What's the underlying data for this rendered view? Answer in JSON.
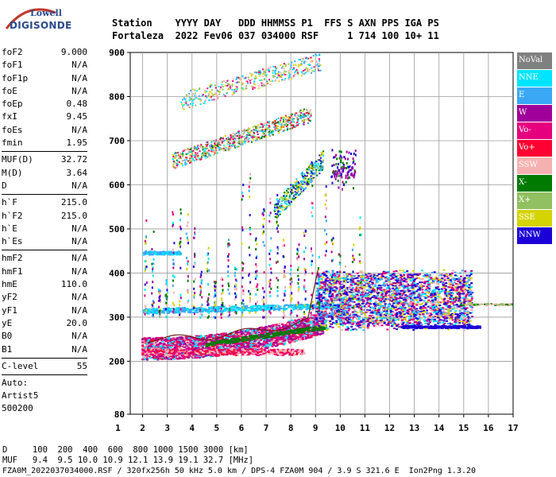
{
  "logo": {
    "brand": "Lowell",
    "product": "DIGISONDE"
  },
  "header": {
    "line1": "Station    YYYY DAY   DDD HHMMSS P1  FFS S AXN PPS IGA PS",
    "line2": "Fortaleza  2022 Fev06 037 034000 RSF     1 714 100 10+ 11"
  },
  "params": {
    "group1": [
      {
        "k": "foF2",
        "v": "9.000"
      },
      {
        "k": "foF1",
        "v": "N/A"
      },
      {
        "k": "foF1p",
        "v": "N/A"
      },
      {
        "k": "foE",
        "v": "N/A"
      },
      {
        "k": "foEp",
        "v": "0.48"
      },
      {
        "k": "fxI",
        "v": "9.45"
      },
      {
        "k": "foEs",
        "v": "N/A"
      },
      {
        "k": "fmin",
        "v": "1.95"
      }
    ],
    "group2": [
      {
        "k": "MUF(D)",
        "v": "32.72"
      },
      {
        "k": "M(D)",
        "v": "3.64"
      },
      {
        "k": "D",
        "v": "N/A"
      }
    ],
    "group3": [
      {
        "k": "h`F",
        "v": "215.0"
      },
      {
        "k": "h`F2",
        "v": "215.0"
      },
      {
        "k": "h`E",
        "v": "N/A"
      },
      {
        "k": "h`Es",
        "v": "N/A"
      }
    ],
    "group4": [
      {
        "k": "hmF2",
        "v": "N/A"
      },
      {
        "k": "hmF1",
        "v": "N/A"
      },
      {
        "k": "hmE",
        "v": "110.0"
      },
      {
        "k": "yF2",
        "v": "N/A"
      },
      {
        "k": "yF1",
        "v": "N/A"
      },
      {
        "k": "yE",
        "v": "20.0"
      },
      {
        "k": "B0",
        "v": "N/A"
      },
      {
        "k": "B1",
        "v": "N/A"
      }
    ],
    "group5": [
      {
        "k": "C-level",
        "v": "55"
      }
    ],
    "auto": {
      "label": "Auto:",
      "program": "Artist5",
      "version": "500200"
    }
  },
  "legend": [
    {
      "label": "NoVal",
      "color": "#808080"
    },
    {
      "label": "NNE",
      "color": "#00e5ff"
    },
    {
      "label": "E",
      "color": "#3aa8f5"
    },
    {
      "label": "W",
      "color": "#a0009a"
    },
    {
      "label": "Vo-",
      "color": "#e6007e"
    },
    {
      "label": "Vo+",
      "color": "#ff0033"
    },
    {
      "label": "SSW",
      "color": "#f5b0b0"
    },
    {
      "label": "X-",
      "color": "#007a00"
    },
    {
      "label": "X+",
      "color": "#90c060"
    },
    {
      "label": "SSE",
      "color": "#d4d400"
    },
    {
      "label": "NNW",
      "color": "#1c00d8"
    }
  ],
  "chart_data": {
    "type": "scatter",
    "x_ticks": [
      "1",
      "2",
      "3",
      "4",
      "5",
      "6",
      "7",
      "8",
      "9",
      "10",
      "11",
      "12",
      "13",
      "14",
      "15",
      "16",
      "17"
    ],
    "y_ticks": [
      "80",
      "200",
      "300",
      "400",
      "500",
      "600",
      "700",
      "800",
      "900"
    ],
    "xlim": [
      1.5,
      17
    ],
    "ylim": [
      80,
      900
    ]
  },
  "footer": {
    "line1": "D     100  200  400  600  800 1000 1500 3000 [km]",
    "line2": "MUF   9.4  9.5 10.0 10.9 12.1 13.9 19.1 32.7 [MHz]",
    "line3": "FZA0M_2022037034000.RSF / 320fx256h 50 kHz 5.0 km / DPS-4 FZA0M 904 / 3.9 S 321.6 E  Ion2Png 1.3.20"
  }
}
